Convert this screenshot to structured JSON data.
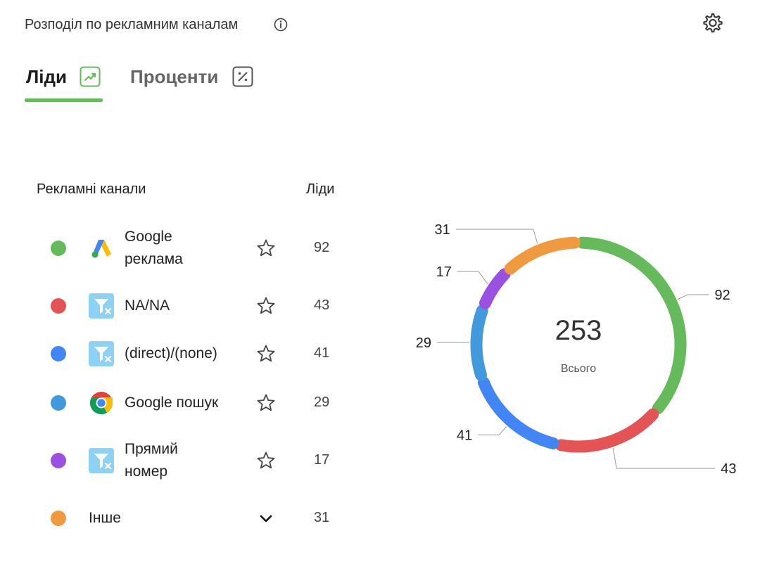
{
  "header": {
    "title": "Розподіл по рекламним каналам"
  },
  "tabs": [
    {
      "label": "Ліди",
      "active": true
    },
    {
      "label": "Проценти",
      "active": false
    }
  ],
  "table": {
    "col_channels": "Рекламні канали",
    "col_leads": "Ліди",
    "rows": [
      {
        "name_lines": [
          "Google",
          "реклама"
        ],
        "value": "92",
        "color": "#65bb5b",
        "icon": "google-ads-icon"
      },
      {
        "name_lines": [
          "NA/NA"
        ],
        "value": "43",
        "color": "#e45454",
        "icon": "filter-icon"
      },
      {
        "name_lines": [
          "(direct)/(none)"
        ],
        "value": "41",
        "color": "#4285f4",
        "icon": "filter-icon"
      },
      {
        "name_lines": [
          "Google пошук"
        ],
        "value": "29",
        "color": "#4299dc",
        "icon": "chrome-icon"
      },
      {
        "name_lines": [
          "Прямий",
          "номер"
        ],
        "value": "17",
        "color": "#9b51e0",
        "icon": "filter-icon"
      },
      {
        "name_lines": [
          "Інше"
        ],
        "value": "31",
        "color": "#ef9a3e",
        "icon": ""
      }
    ]
  },
  "colors": {
    "accent": "#65bb5b"
  },
  "chart_data": {
    "type": "pie",
    "variant": "donut",
    "total": "253",
    "total_label": "Всього",
    "categories": [
      "Google реклама",
      "NA/NA",
      "(direct)/(none)",
      "Google пошук",
      "Прямий номер",
      "Інше"
    ],
    "values": [
      92,
      43,
      41,
      29,
      17,
      31
    ],
    "colors": [
      "#65bb5b",
      "#e45454",
      "#4285f4",
      "#4299dc",
      "#9b51e0",
      "#ef9a3e"
    ]
  }
}
